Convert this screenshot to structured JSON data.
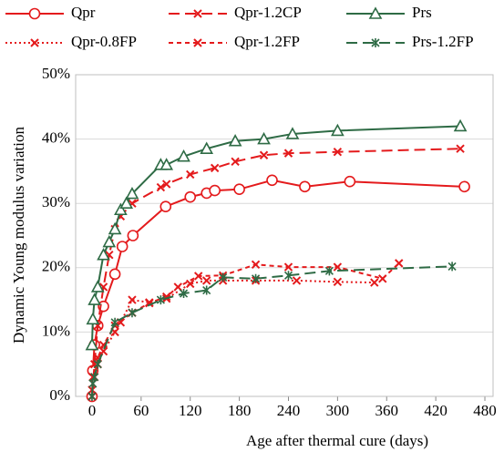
{
  "chart_data": {
    "type": "line",
    "x_label": "Age after thermal cure (days)",
    "y_label": "Dynamic Young modulus variation",
    "xlim": [
      -20,
      490
    ],
    "xticks": [
      0,
      60,
      120,
      180,
      240,
      300,
      360,
      420,
      480
    ],
    "ylim": [
      0,
      50
    ],
    "yticks": [
      {
        "value": 0,
        "label": "0%"
      },
      {
        "value": 10,
        "label": "10%"
      },
      {
        "value": 20,
        "label": "20%"
      },
      {
        "value": 30,
        "label": "30%"
      },
      {
        "value": 40,
        "label": "40%"
      },
      {
        "value": 50,
        "label": "50%"
      }
    ],
    "grid": true,
    "series": [
      {
        "name": "Qpr",
        "color": "#e41a1c",
        "dash": "solid",
        "marker": "circle",
        "x": [
          0,
          1,
          3,
          7,
          14,
          28,
          37,
          50,
          90,
          120,
          140,
          150,
          180,
          220,
          260,
          315,
          455
        ],
        "values": [
          0,
          4,
          8,
          11,
          14,
          19,
          23.3,
          25,
          29.5,
          31,
          31.6,
          32,
          32.2,
          33.6,
          32.6,
          33.4,
          32.6
        ]
      },
      {
        "name": "Qpr-1.2CP",
        "color": "#e41a1c",
        "dash": "long",
        "marker": "x",
        "x": [
          0,
          3,
          7,
          14,
          21,
          28,
          35,
          49,
          84,
          91,
          120,
          150,
          175,
          210,
          240,
          300,
          450
        ],
        "values": [
          0,
          5,
          11,
          17,
          22,
          26,
          28,
          30,
          32.5,
          33,
          34.5,
          35.5,
          36.5,
          37.5,
          37.8,
          38,
          38.5
        ]
      },
      {
        "name": "Prs",
        "color": "#2e6b45",
        "dash": "solid",
        "marker": "triangle",
        "x": [
          0,
          1,
          3,
          7,
          14,
          21,
          28,
          35,
          42,
          49,
          84,
          91,
          112,
          140,
          175,
          210,
          245,
          300,
          450
        ],
        "values": [
          8,
          12,
          15,
          17,
          22,
          24,
          26,
          29,
          30,
          31.5,
          36,
          36,
          37.3,
          38.5,
          39.7,
          40,
          40.8,
          41.3,
          42
        ]
      },
      {
        "name": "Qpr-0.8FP",
        "color": "#e41a1c",
        "dash": "dot",
        "marker": "x",
        "x": [
          0,
          1,
          7,
          14,
          28,
          35,
          49,
          70,
          91,
          120,
          140,
          160,
          200,
          250,
          300,
          345
        ],
        "values": [
          1,
          3,
          5,
          7,
          10,
          11.5,
          15,
          14.6,
          15.2,
          17.5,
          18,
          18,
          18,
          18,
          17.8,
          17.7
        ]
      },
      {
        "name": "Qpr-1.2FP",
        "color": "#e41a1c",
        "dash": "short",
        "marker": "x",
        "x": [
          0,
          3,
          7,
          14,
          28,
          49,
          70,
          91,
          105,
          130,
          160,
          200,
          240,
          300,
          355,
          375
        ],
        "values": [
          0,
          3,
          6,
          8,
          11,
          13,
          14.5,
          15.5,
          17,
          18.7,
          18.8,
          20.5,
          20.1,
          20.1,
          18.3,
          20.7
        ]
      },
      {
        "name": "Prs-1.2FP",
        "color": "#2e6b45",
        "dash": "long",
        "marker": "star",
        "x": [
          0,
          1,
          3,
          7,
          28,
          49,
          84,
          112,
          140,
          160,
          200,
          240,
          290,
          440
        ],
        "values": [
          0,
          2,
          3,
          5,
          11.5,
          13,
          15,
          16,
          16.5,
          18.5,
          18.3,
          18.8,
          19.5,
          20.2
        ]
      }
    ]
  }
}
